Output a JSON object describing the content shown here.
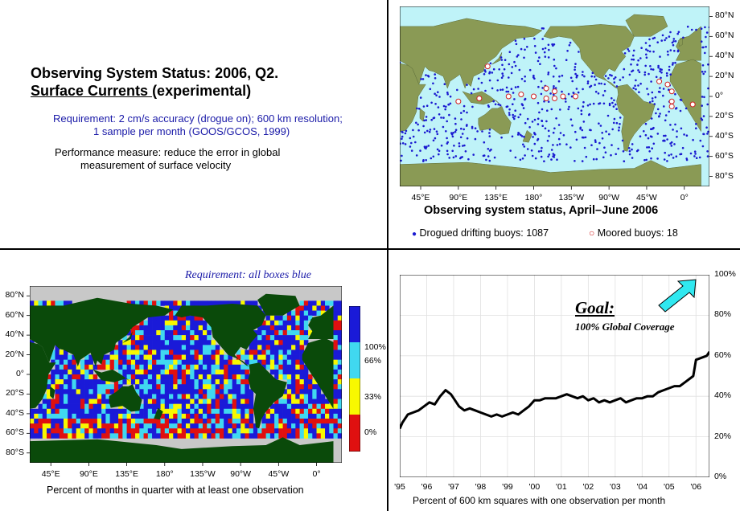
{
  "q1": {
    "title_line1": "Observing System Status:  2006, Q2.",
    "title_line2_underlined": "Surface Currents ",
    "title_line2_rest": "(experimental)",
    "requirement_line1": "Requirement: 2 cm/s accuracy (drogue on); 600 km resolution;",
    "requirement_line2": "1 sample per month (GOOS/GCOS, 1999)",
    "performance_line1": "Performance measure: reduce the error in global",
    "performance_line2": "measurement of surface velocity"
  },
  "q2": {
    "lat_labels": [
      "80°N",
      "60°N",
      "40°N",
      "20°N",
      "0°",
      "20°S",
      "40°S",
      "60°S",
      "80°S"
    ],
    "lon_labels": [
      "45°E",
      "90°E",
      "135°E",
      "180°",
      "135°W",
      "90°W",
      "45°W",
      "0°"
    ],
    "title": "Observing system status, April–June 2006",
    "legend_drifting": "Drogued drifting buoys: 1087",
    "legend_moored": "Moored buoys: 18",
    "colors": {
      "drifting": "#1a1ad0",
      "moored": "#d02020",
      "ocean": "#bff3f8"
    }
  },
  "q3": {
    "requirement": "Requirement: all boxes blue",
    "lat_labels": [
      "80°N",
      "60°N",
      "40°N",
      "20°N",
      "0°",
      "20°S",
      "40°S",
      "60°S",
      "80°S"
    ],
    "lon_labels": [
      "45°E",
      "90°E",
      "135°E",
      "180°",
      "135°W",
      "90°W",
      "45°W",
      "0°"
    ],
    "scale_labels": [
      "100%",
      "66%",
      "33%",
      "0%"
    ],
    "caption": "Percent of months in quarter with at least one observation",
    "colors": {
      "blue": "#1a1ad8",
      "cyan": "#40d8f0",
      "yellow": "#f8f800",
      "red": "#e01010",
      "land": "#0a4a0a",
      "nodata": "#c8c8c8"
    }
  },
  "chart_data": {
    "type": "line",
    "x_tick_labels": [
      "'95",
      "'96",
      "'97",
      "'98",
      "'99",
      "'00",
      "'01",
      "'02",
      "'03",
      "'04",
      "'05",
      "'06"
    ],
    "y_tick_labels": [
      "0%",
      "20%",
      "40%",
      "60%",
      "80%",
      "100%"
    ],
    "ylim": [
      0,
      100
    ],
    "xlim": [
      1995.0,
      2006.5
    ],
    "xlabel": "Percent of 600 km squares with one observation per month",
    "goal_title": "Goal:",
    "goal_subtitle": "100% Global Coverage",
    "series": [
      {
        "x": [
          1995.0,
          1995.1,
          1995.3,
          1995.5,
          1995.7,
          1995.9,
          1996.1,
          1996.3,
          1996.5,
          1996.7,
          1996.9,
          1997.0,
          1997.2,
          1997.4,
          1997.6,
          1997.8,
          1998.0,
          1998.2,
          1998.4,
          1998.6,
          1998.8,
          1999.0,
          1999.2,
          1999.4,
          1999.6,
          1999.8,
          2000.0,
          2000.2,
          2000.4,
          2000.6,
          2000.8,
          2001.0,
          2001.2,
          2001.4,
          2001.6,
          2001.8,
          2002.0,
          2002.2,
          2002.4,
          2002.6,
          2002.8,
          2003.0,
          2003.2,
          2003.4,
          2003.6,
          2003.8,
          2004.0,
          2004.2,
          2004.4,
          2004.6,
          2004.8,
          2005.0,
          2005.2,
          2005.4,
          2005.6,
          2005.8,
          2005.9,
          2006.0,
          2006.2,
          2006.4,
          2006.5
        ],
        "values": [
          24,
          27,
          31,
          32,
          33,
          35,
          37,
          36,
          40,
          43,
          41,
          39,
          35,
          33,
          34,
          33,
          32,
          31,
          30,
          31,
          30,
          31,
          32,
          31,
          33,
          35,
          38,
          38,
          39,
          39,
          39,
          40,
          41,
          40,
          39,
          40,
          38,
          39,
          37,
          38,
          37,
          38,
          39,
          37,
          38,
          39,
          39,
          40,
          40,
          42,
          43,
          44,
          45,
          45,
          47,
          49,
          50,
          58,
          59,
          60,
          62
        ]
      }
    ]
  }
}
